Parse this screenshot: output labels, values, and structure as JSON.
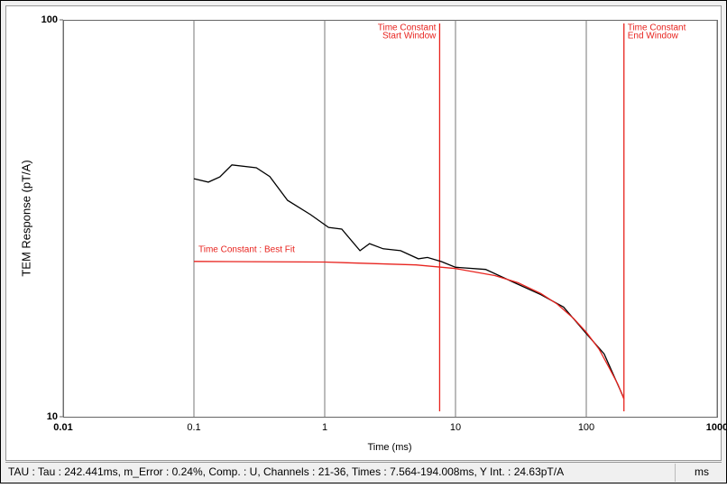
{
  "chart_data": {
    "type": "line",
    "x_label": "Time (ms)",
    "y_label": "TEM Response (pT/A)",
    "xlim": [
      0.01,
      1000
    ],
    "ylim": [
      10,
      100
    ],
    "log_x": true,
    "log_y": true,
    "xticks": [
      0.01,
      0.1,
      1,
      10,
      100,
      1000
    ],
    "yticks": [
      10,
      100
    ],
    "grid_x": true,
    "series": [
      {
        "color": "#000000",
        "x": [
          0.1,
          0.129,
          0.158,
          0.195,
          0.3,
          0.38,
          0.52,
          0.78,
          1.07,
          1.35,
          1.86,
          2.2,
          2.8,
          3.8,
          5.2,
          6.1,
          7.8,
          10,
          17,
          28,
          45,
          67,
          100,
          137,
          190
        ],
        "values": [
          39.8,
          39.0,
          40.2,
          43.1,
          42.4,
          40.3,
          35.1,
          32.3,
          30.0,
          29.7,
          26.2,
          27.3,
          26.5,
          26.2,
          25.0,
          25.2,
          24.6,
          23.8,
          23.5,
          21.8,
          20.3,
          18.9,
          16.2,
          14.4,
          11.3
        ]
      },
      {
        "color": "#e8231e",
        "x": [
          0.1,
          1,
          5,
          10,
          20,
          30,
          45,
          60,
          80,
          100,
          125,
          150,
          175,
          194
        ],
        "values": [
          24.62,
          24.53,
          24.13,
          23.63,
          22.68,
          21.76,
          20.44,
          19.22,
          17.69,
          16.33,
          14.81,
          13.27,
          12.05,
          11.08
        ]
      }
    ],
    "markers": [
      {
        "x": 7.564,
        "label_lines": [
          "Time Constant",
          "Start Window"
        ],
        "side": "left"
      },
      {
        "x": 194.008,
        "label_lines": [
          "Time Constant",
          "End Window"
        ],
        "side": "right"
      }
    ],
    "fit_label": "Time Constant : Best Fit"
  },
  "status_bar": {
    "text": "TAU : Tau : 242.441ms, m_Error : 0.24%, Comp. : U, Channels : 21-36, Times : 7.564-194.008ms, Y Int. : 24.63pT/A",
    "unit": "ms"
  }
}
